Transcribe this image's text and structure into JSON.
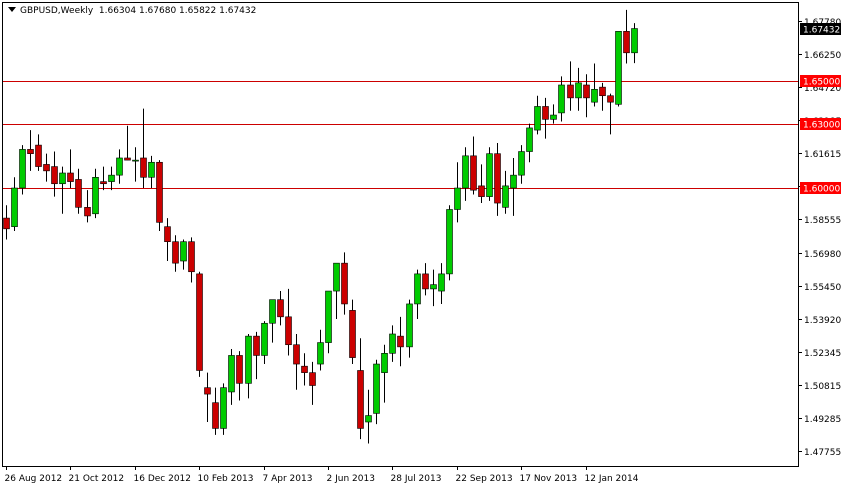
{
  "header": {
    "symbol": "GBPUSD,Weekly",
    "ohlc": "1.66304 1.67680 1.65822 1.67432"
  },
  "colors": {
    "background": "#ffffff",
    "frame": "#000000",
    "bull": "#00cc00",
    "bear": "#cc0000",
    "wick": "#000000",
    "level_line": "#cc0000",
    "level_label_bg": "#ff0000",
    "current_label_bg": "#000000"
  },
  "chart_data": {
    "type": "candlestick",
    "title": "GBPUSD,Weekly",
    "ylim": [
      1.4705,
      1.6862
    ],
    "y_ticks": [
      "1.67780",
      "1.66250",
      "1.64720",
      "1.63185",
      "1.61615",
      "1.60085",
      "1.58555",
      "1.56980",
      "1.55450",
      "1.53920",
      "1.52345",
      "1.50815",
      "1.49285",
      "1.47755"
    ],
    "x_ticks": [
      {
        "index": 0,
        "label": "26 Aug 2012"
      },
      {
        "index": 8,
        "label": "21 Oct 2012"
      },
      {
        "index": 16,
        "label": "16 Dec 2012"
      },
      {
        "index": 24,
        "label": "10 Feb 2013"
      },
      {
        "index": 32,
        "label": "7 Apr 2013"
      },
      {
        "index": 40,
        "label": "2 Jun 2013"
      },
      {
        "index": 48,
        "label": "28 Jul 2013"
      },
      {
        "index": 56,
        "label": "22 Sep 2013"
      },
      {
        "index": 64,
        "label": "17 Nov 2013"
      },
      {
        "index": 72,
        "label": "12 Jan 2014"
      }
    ],
    "horizontal_levels": [
      {
        "value": 1.65,
        "label": "1.65000"
      },
      {
        "value": 1.63,
        "label": "1.63000"
      },
      {
        "value": 1.6,
        "label": "1.60000"
      }
    ],
    "current_price": {
      "value": 1.67432,
      "label": "1.67432"
    },
    "candles": [
      [
        1.586,
        1.592,
        1.576,
        1.581
      ],
      [
        1.582,
        1.605,
        1.58,
        1.6
      ],
      [
        1.6,
        1.62,
        1.597,
        1.618
      ],
      [
        1.618,
        1.627,
        1.608,
        1.616
      ],
      [
        1.62,
        1.625,
        1.608,
        1.61
      ],
      [
        1.611,
        1.616,
        1.603,
        1.608
      ],
      [
        1.61,
        1.617,
        1.596,
        1.602
      ],
      [
        1.602,
        1.61,
        1.588,
        1.607
      ],
      [
        1.607,
        1.618,
        1.6,
        1.603
      ],
      [
        1.604,
        1.609,
        1.588,
        1.591
      ],
      [
        1.591,
        1.599,
        1.584,
        1.587
      ],
      [
        1.588,
        1.609,
        1.586,
        1.605
      ],
      [
        1.603,
        1.61,
        1.599,
        1.602
      ],
      [
        1.603,
        1.61,
        1.599,
        1.606
      ],
      [
        1.606,
        1.618,
        1.602,
        1.614
      ],
      [
        1.614,
        1.629,
        1.613,
        1.613
      ],
      [
        1.613,
        1.619,
        1.603,
        1.613
      ],
      [
        1.614,
        1.637,
        1.6,
        1.605
      ],
      [
        1.605,
        1.615,
        1.6,
        1.612
      ],
      [
        1.612,
        1.613,
        1.58,
        1.584
      ],
      [
        1.582,
        1.586,
        1.566,
        1.575
      ],
      [
        1.575,
        1.578,
        1.561,
        1.565
      ],
      [
        1.566,
        1.576,
        1.562,
        1.575
      ],
      [
        1.575,
        1.577,
        1.556,
        1.561
      ],
      [
        1.56,
        1.561,
        1.512,
        1.515
      ],
      [
        1.507,
        1.514,
        1.491,
        1.504
      ],
      [
        1.5,
        1.507,
        1.485,
        1.488
      ],
      [
        1.488,
        1.509,
        1.485,
        1.507
      ],
      [
        1.505,
        1.525,
        1.499,
        1.522
      ],
      [
        1.522,
        1.524,
        1.501,
        1.509
      ],
      [
        1.509,
        1.532,
        1.502,
        1.531
      ],
      [
        1.531,
        1.533,
        1.511,
        1.522
      ],
      [
        1.522,
        1.538,
        1.518,
        1.537
      ],
      [
        1.537,
        1.547,
        1.528,
        1.548
      ],
      [
        1.548,
        1.552,
        1.536,
        1.54
      ],
      [
        1.54,
        1.553,
        1.522,
        1.527
      ],
      [
        1.527,
        1.532,
        1.506,
        1.518
      ],
      [
        1.517,
        1.523,
        1.508,
        1.514
      ],
      [
        1.514,
        1.519,
        1.499,
        1.508
      ],
      [
        1.518,
        1.534,
        1.515,
        1.528
      ],
      [
        1.528,
        1.551,
        1.523,
        1.552
      ],
      [
        1.552,
        1.564,
        1.539,
        1.565
      ],
      [
        1.565,
        1.57,
        1.541,
        1.546
      ],
      [
        1.543,
        1.548,
        1.518,
        1.521
      ],
      [
        1.515,
        1.53,
        1.483,
        1.488
      ],
      [
        1.491,
        1.506,
        1.481,
        1.494
      ],
      [
        1.495,
        1.52,
        1.49,
        1.518
      ],
      [
        1.514,
        1.527,
        1.5,
        1.523
      ],
      [
        1.523,
        1.536,
        1.519,
        1.532
      ],
      [
        1.531,
        1.54,
        1.517,
        1.526
      ],
      [
        1.526,
        1.548,
        1.521,
        1.546
      ],
      [
        1.546,
        1.562,
        1.539,
        1.56
      ],
      [
        1.56,
        1.565,
        1.55,
        1.553
      ],
      [
        1.553,
        1.562,
        1.545,
        1.555
      ],
      [
        1.552,
        1.565,
        1.546,
        1.56
      ],
      [
        1.56,
        1.592,
        1.557,
        1.59
      ],
      [
        1.59,
        1.612,
        1.584,
        1.6
      ],
      [
        1.6,
        1.619,
        1.594,
        1.615
      ],
      [
        1.615,
        1.624,
        1.597,
        1.599
      ],
      [
        1.601,
        1.611,
        1.593,
        1.596
      ],
      [
        1.596,
        1.619,
        1.594,
        1.616
      ],
      [
        1.616,
        1.621,
        1.587,
        1.593
      ],
      [
        1.591,
        1.608,
        1.588,
        1.601
      ],
      [
        1.6,
        1.614,
        1.587,
        1.606
      ],
      [
        1.606,
        1.62,
        1.602,
        1.617
      ],
      [
        1.617,
        1.63,
        1.612,
        1.628
      ],
      [
        1.627,
        1.643,
        1.625,
        1.638
      ],
      [
        1.638,
        1.642,
        1.623,
        1.632
      ],
      [
        1.632,
        1.639,
        1.63,
        1.634
      ],
      [
        1.635,
        1.652,
        1.631,
        1.648
      ],
      [
        1.648,
        1.659,
        1.636,
        1.642
      ],
      [
        1.642,
        1.656,
        1.636,
        1.649
      ],
      [
        1.648,
        1.653,
        1.633,
        1.642
      ],
      [
        1.64,
        1.658,
        1.638,
        1.646
      ],
      [
        1.647,
        1.649,
        1.636,
        1.643
      ],
      [
        1.643,
        1.644,
        1.625,
        1.64
      ],
      [
        1.639,
        1.672,
        1.638,
        1.673
      ],
      [
        1.673,
        1.683,
        1.658,
        1.663
      ],
      [
        1.663,
        1.6768,
        1.6582,
        1.6743
      ]
    ]
  }
}
